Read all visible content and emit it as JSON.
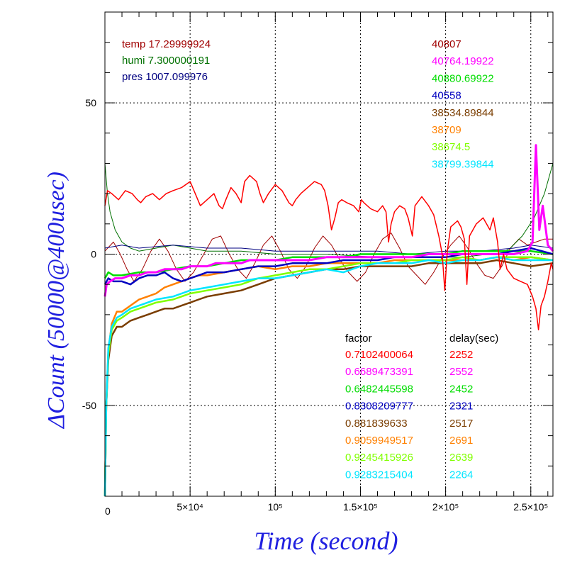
{
  "chart_data": {
    "type": "line",
    "xlabel": "Time (second)",
    "ylabel": "ΔCount (50000@400usec)",
    "xlim": [
      0,
      263000
    ],
    "ylim": [
      -80,
      80
    ],
    "grid": true,
    "x_ticks": [
      {
        "value": 0,
        "label": "0"
      },
      {
        "value": 50000,
        "label": "5×10⁴"
      },
      {
        "value": 100000,
        "label": "10⁵"
      },
      {
        "value": 150000,
        "label": "1.5×10⁵"
      },
      {
        "value": 200000,
        "label": "2×10⁵"
      },
      {
        "value": 250000,
        "label": "2.5×10⁵"
      }
    ],
    "y_ticks": [
      {
        "value": 50,
        "label": "50"
      },
      {
        "value": 0,
        "label": "0"
      },
      {
        "value": -50,
        "label": "-50"
      }
    ],
    "env_labels": [
      {
        "text": "temp 17.29999924",
        "color": "#a00000"
      },
      {
        "text": "humi 7.300000191",
        "color": "#007000"
      },
      {
        "text": "pres 1007.099976",
        "color": "#000080"
      }
    ],
    "base_counts": [
      {
        "text": "40807",
        "color": "#a00000"
      },
      {
        "text": "40764.19922",
        "color": "#ff00ff"
      },
      {
        "text": "40880.69922",
        "color": "#00dd00"
      },
      {
        "text": "40558",
        "color": "#0000c0"
      },
      {
        "text": "38534.89844",
        "color": "#7a3d00"
      },
      {
        "text": "38709",
        "color": "#ff8000"
      },
      {
        "text": "38674.5",
        "color": "#80ff00"
      },
      {
        "text": "38799.39844",
        "color": "#00e5ff"
      }
    ],
    "table_headers": {
      "factor": "factor",
      "delay": "delay(sec)"
    },
    "table_rows": [
      {
        "factor": "0.7102400064",
        "delay": "2252",
        "color": "#ff0000"
      },
      {
        "factor": "0.6689473391",
        "delay": "2552",
        "color": "#ff00ff"
      },
      {
        "factor": "0.6482445598",
        "delay": "2452",
        "color": "#00dd00"
      },
      {
        "factor": "0.8308209777",
        "delay": "2321",
        "color": "#0000c0"
      },
      {
        "factor": "0.881839633",
        "delay": "2517",
        "color": "#7a3d00"
      },
      {
        "factor": "0.9059949517",
        "delay": "2691",
        "color": "#ff8000"
      },
      {
        "factor": "0.9245415926",
        "delay": "2639",
        "color": "#80ff00"
      },
      {
        "factor": "0.9283215404",
        "delay": "2264",
        "color": "#00e5ff"
      }
    ],
    "series": [
      {
        "key": "temp",
        "color": "#a00000",
        "width": 1,
        "x": [
          0,
          5000,
          9000,
          13000,
          17000,
          22000,
          27000,
          32000,
          37000,
          42000,
          47000,
          52000,
          58000,
          63000,
          68000,
          73000,
          78000,
          83000,
          88000,
          93000,
          98000,
          103000,
          108000,
          113000,
          118000,
          123000,
          128000,
          133000,
          138000,
          143000,
          148000,
          153000,
          158000,
          163000,
          168000,
          173000,
          178000,
          183000,
          188000,
          193000,
          198000,
          203000,
          208000,
          213000,
          218000,
          223000,
          228000,
          233000,
          238000,
          243000,
          248000,
          253000,
          258000,
          263000
        ],
        "y": [
          1,
          4,
          0,
          -5,
          -9,
          -5,
          1,
          5,
          1,
          -5,
          -9,
          -6,
          0,
          5,
          6,
          0,
          -5,
          -8,
          -3,
          3,
          6,
          1,
          -5,
          -8,
          -4,
          2,
          6,
          3,
          -2,
          -6,
          -9,
          -6,
          0,
          5,
          7,
          2,
          -4,
          -7,
          -10,
          -6,
          -1,
          3,
          6,
          2,
          -3,
          -7,
          -8,
          -4,
          2,
          5,
          3,
          4,
          5,
          5
        ]
      },
      {
        "key": "humi",
        "color": "#007000",
        "width": 1,
        "x": [
          0,
          1500,
          3000,
          6000,
          10000,
          15000,
          20000,
          30000,
          40000,
          50000,
          60000,
          80000,
          100000,
          130000,
          160000,
          190000,
          210000,
          225000,
          232000,
          238000,
          245000,
          252000,
          258000,
          263000
        ],
        "y": [
          30,
          20,
          14,
          8,
          4,
          2,
          1,
          2,
          3,
          2,
          1,
          1,
          0,
          0,
          -1,
          -1,
          -1,
          0,
          0,
          2,
          6,
          12,
          20,
          30
        ]
      },
      {
        "key": "pres",
        "color": "#000080",
        "width": 1,
        "x": [
          0,
          10000,
          20000,
          40000,
          60000,
          80000,
          100000,
          120000,
          140000,
          160000,
          180000,
          200000,
          220000,
          240000,
          250000,
          263000
        ],
        "y": [
          2,
          3,
          2,
          3,
          2,
          2,
          1,
          1,
          1,
          1,
          0,
          1,
          1,
          2,
          3,
          2
        ]
      },
      {
        "key": "orange",
        "color": "#ff8000",
        "width": 2.5,
        "x": [
          0,
          800,
          2000,
          4000,
          7000,
          10000,
          15000,
          20000,
          25000,
          30000,
          35000,
          40000,
          45000,
          50000,
          55000,
          60000,
          70000,
          80000,
          90000,
          100000,
          110000,
          120000,
          130000,
          140000,
          150000,
          160000,
          170000,
          180000,
          190000,
          200000,
          210000,
          220000,
          230000,
          240000,
          250000,
          263000
        ],
        "y": [
          -80,
          -50,
          -32,
          -23,
          -19,
          -19,
          -17,
          -15,
          -14,
          -13,
          -11,
          -10,
          -9,
          -8,
          -7,
          -7,
          -6,
          -5,
          -4,
          -5,
          -4,
          -4,
          -3,
          -3,
          -3,
          -3,
          -2,
          -2,
          -2,
          -2,
          -2,
          -2,
          -1,
          -2,
          -1,
          -2
        ]
      },
      {
        "key": "brown",
        "color": "#7a3d00",
        "width": 2.5,
        "x": [
          0,
          800,
          2000,
          4000,
          7000,
          10000,
          15000,
          20000,
          25000,
          30000,
          35000,
          40000,
          45000,
          50000,
          55000,
          60000,
          70000,
          80000,
          90000,
          100000,
          110000,
          120000,
          130000,
          140000,
          150000,
          160000,
          170000,
          180000,
          190000,
          200000,
          210000,
          220000,
          230000,
          240000,
          250000,
          263000
        ],
        "y": [
          -80,
          -50,
          -35,
          -27,
          -24,
          -24,
          -22,
          -21,
          -20,
          -19,
          -18,
          -18,
          -17,
          -16,
          -15,
          -14,
          -13,
          -12,
          -10,
          -8,
          -7,
          -6,
          -5,
          -5,
          -4,
          -4,
          -4,
          -4,
          -3,
          -3,
          -3,
          -3,
          -2,
          -3,
          -4,
          -3
        ]
      },
      {
        "key": "lime",
        "color": "#80ff00",
        "width": 2.5,
        "x": [
          0,
          800,
          2000,
          4000,
          7000,
          10000,
          15000,
          20000,
          25000,
          30000,
          40000,
          50000,
          60000,
          70000,
          80000,
          90000,
          100000,
          110000,
          120000,
          130000,
          140000,
          150000,
          160000,
          170000,
          180000,
          190000,
          200000,
          210000,
          220000,
          230000,
          240000,
          250000,
          263000
        ],
        "y": [
          -80,
          -50,
          -33,
          -25,
          -22,
          -21,
          -19,
          -18,
          -17,
          -16,
          -15,
          -13,
          -12,
          -11,
          -10,
          -8,
          -7,
          -6,
          -5,
          -5,
          -4,
          -3,
          -3,
          -3,
          -2,
          -2,
          -2,
          -1,
          -2,
          -1,
          -1,
          -1,
          -2
        ]
      },
      {
        "key": "cyan",
        "color": "#00e5ff",
        "width": 2.5,
        "x": [
          0,
          800,
          2000,
          4000,
          7000,
          10000,
          15000,
          20000,
          25000,
          30000,
          40000,
          50000,
          60000,
          70000,
          80000,
          90000,
          100000,
          110000,
          120000,
          130000,
          140000,
          150000,
          160000,
          170000,
          180000,
          190000,
          200000,
          210000,
          220000,
          230000,
          240000,
          250000,
          263000
        ],
        "y": [
          -80,
          -50,
          -31,
          -24,
          -21,
          -20,
          -18,
          -17,
          -16,
          -15,
          -14,
          -12,
          -11,
          -10,
          -9,
          -8,
          -8,
          -7,
          -6,
          -5,
          -6,
          -4,
          -3,
          -3,
          -3,
          -2,
          -3,
          -2,
          -2,
          -1,
          -2,
          -2,
          -2
        ]
      },
      {
        "key": "green",
        "color": "#00dd00",
        "width": 2.5,
        "x": [
          0,
          2000,
          5000,
          10000,
          20000,
          30000,
          40000,
          50000,
          60000,
          70000,
          80000,
          90000,
          100000,
          110000,
          120000,
          130000,
          140000,
          150000,
          160000,
          170000,
          180000,
          190000,
          200000,
          210000,
          220000,
          230000,
          240000,
          250000,
          263000
        ],
        "y": [
          -8,
          -6,
          -7,
          -7,
          -6,
          -6,
          -5,
          -4,
          -4,
          -3,
          -2,
          -2,
          -2,
          -1,
          -1,
          -1,
          -1,
          0,
          0,
          0,
          0,
          0,
          0,
          1,
          1,
          1,
          1,
          1,
          0
        ]
      },
      {
        "key": "blue",
        "color": "#0000c0",
        "width": 2.5,
        "x": [
          0,
          2000,
          5000,
          10000,
          15000,
          20000,
          25000,
          30000,
          35000,
          40000,
          45000,
          50000,
          55000,
          60000,
          70000,
          80000,
          90000,
          100000,
          110000,
          120000,
          130000,
          140000,
          150000,
          160000,
          170000,
          180000,
          190000,
          200000,
          210000,
          220000,
          230000,
          240000,
          250000,
          263000
        ],
        "y": [
          -10,
          -8,
          -9,
          -9,
          -10,
          -8,
          -7,
          -7,
          -6,
          -8,
          -9,
          -8,
          -7,
          -6,
          -6,
          -5,
          -4,
          -4,
          -3,
          -3,
          -3,
          -2,
          -2,
          -2,
          -1,
          -1,
          -1,
          -1,
          0,
          0,
          0,
          1,
          2,
          0
        ]
      },
      {
        "key": "magenta",
        "color": "#ff00ff",
        "width": 3,
        "x": [
          0,
          1000,
          3000,
          6000,
          10000,
          15000,
          20000,
          25000,
          30000,
          35000,
          40000,
          45000,
          50000,
          55000,
          60000,
          65000,
          70000,
          75000,
          80000,
          85000,
          90000,
          95000,
          100000,
          110000,
          120000,
          130000,
          140000,
          150000,
          160000,
          170000,
          180000,
          190000,
          200000,
          210000,
          220000,
          230000,
          240000,
          248000,
          251000,
          253000,
          255000,
          257000,
          260000,
          263000
        ],
        "y": [
          -14,
          -10,
          -9,
          -8,
          -8,
          -7,
          -7,
          -6,
          -6,
          -5,
          -5,
          -5,
          -4,
          -4,
          -4,
          -3,
          -3,
          -3,
          -3,
          -2,
          -2,
          -2,
          -2,
          -2,
          -2,
          -1,
          -1,
          -1,
          -1,
          -1,
          -1,
          0,
          0,
          0,
          0,
          0,
          0,
          1,
          4,
          36,
          8,
          16,
          3,
          1
        ]
      },
      {
        "key": "red",
        "color": "#ff0000",
        "width": 1.5,
        "x": [
          0,
          1500,
          4000,
          8000,
          12000,
          16000,
          19000,
          21000,
          24000,
          28000,
          32000,
          36000,
          40000,
          45000,
          50000,
          53000,
          56000,
          60000,
          64000,
          67000,
          69000,
          71000,
          74000,
          77000,
          80000,
          82000,
          85000,
          89000,
          91000,
          93000,
          96000,
          100000,
          104000,
          108000,
          110000,
          112000,
          115000,
          119000,
          123000,
          127000,
          129000,
          131000,
          133000,
          135000,
          137000,
          139000,
          142000,
          146000,
          149000,
          150500,
          152000,
          156000,
          160000,
          163000,
          165000,
          166500,
          168000,
          170000,
          173000,
          176000,
          178000,
          180500,
          182000,
          186000,
          190000,
          193000,
          196000,
          198000,
          199500,
          201000,
          203000,
          207000,
          209000,
          211000,
          212500,
          214000,
          218000,
          222000,
          224000,
          226000,
          228000,
          230500,
          232000,
          234000,
          236000,
          240000,
          244000,
          248000,
          251000,
          253000,
          254500,
          256000,
          258000,
          260000,
          262000,
          263000
        ],
        "y": [
          16,
          21,
          20,
          18,
          21,
          20,
          18,
          17,
          19,
          20,
          18,
          20,
          21,
          22,
          24,
          20,
          16,
          18,
          20,
          16,
          15,
          18,
          22,
          20,
          17,
          24,
          26,
          24,
          20,
          17,
          20,
          23,
          21,
          17,
          16,
          18,
          20,
          22,
          24,
          23,
          21,
          16,
          8,
          12,
          17,
          18,
          17,
          16,
          14,
          18,
          17,
          15,
          14,
          16,
          14,
          4,
          10,
          14,
          16,
          15,
          12,
          6,
          16,
          19,
          16,
          13,
          6,
          0,
          -12,
          1,
          9,
          11,
          9,
          5,
          -10,
          6,
          10,
          12,
          10,
          8,
          12,
          4,
          -5,
          0,
          -5,
          -8,
          -9,
          -10,
          -14,
          -18,
          -25,
          -17,
          -14,
          -9,
          -3,
          -5
        ]
      }
    ]
  }
}
